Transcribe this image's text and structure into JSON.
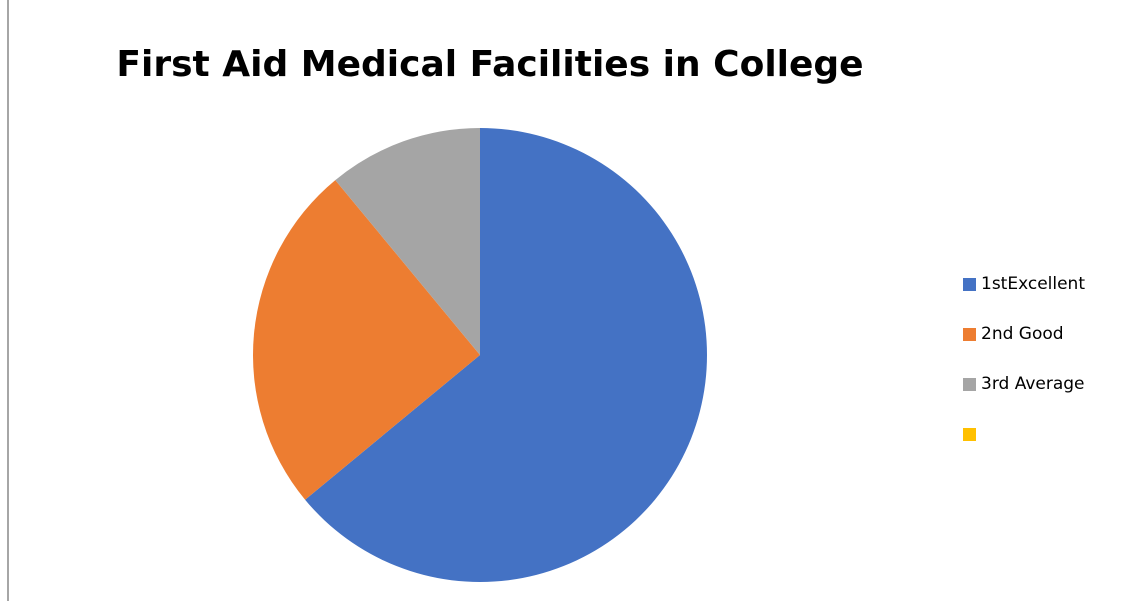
{
  "chart_data": {
    "type": "pie",
    "title": "First Aid Medical Facilities in College",
    "categories": [
      "1stExcellent",
      "2nd Good",
      "3rd Average",
      ""
    ],
    "values": [
      64,
      25,
      11,
      0
    ],
    "colors": [
      "#4472c4",
      "#ed7d31",
      "#a5a5a5",
      "#ffc000"
    ],
    "legend_position": "right",
    "start_angle_deg": 0,
    "direction": "clockwise"
  }
}
